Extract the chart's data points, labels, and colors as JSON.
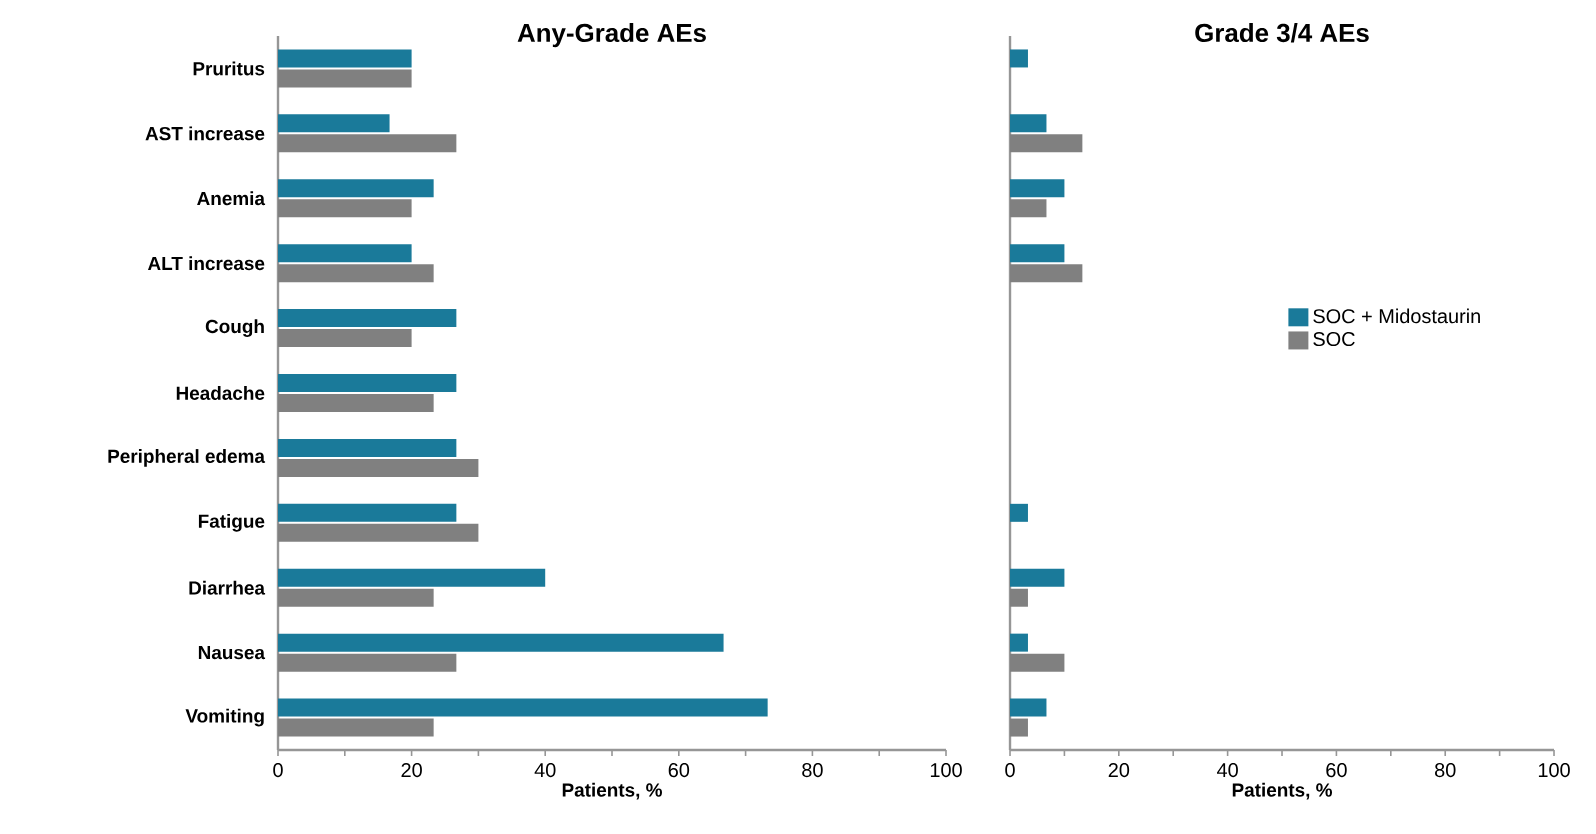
{
  "chart_data": [
    {
      "type": "bar",
      "orientation": "horizontal",
      "title": "Any-Grade AEs",
      "xlabel": "Patients, %",
      "categories": [
        "Pruritus",
        "AST increase",
        "Anemia",
        "ALT increase",
        "Cough",
        "Headache",
        "Peripheral edema",
        "Fatigue",
        "Diarrhea",
        "Nausea",
        "Vomiting"
      ],
      "series": [
        {
          "color": "#1a7a9a",
          "values": [
            20,
            16.7,
            23.3,
            20,
            26.7,
            26.7,
            26.7,
            26.7,
            40,
            66.7,
            73.3
          ]
        },
        {
          "color": "#808080",
          "values": [
            20,
            26.7,
            20,
            23.3,
            20,
            23.3,
            30,
            30,
            23.3,
            26.7,
            23.3
          ]
        }
      ],
      "xlim": [
        0,
        100
      ],
      "xticks": [
        0,
        {
          "value": 10,
          "label": null
        },
        20,
        {
          "value": 30,
          "label": null
        },
        40,
        {
          "value": 50,
          "label": null
        },
        60,
        {
          "value": 70,
          "label": null
        },
        80,
        {
          "value": 90,
          "label": null
        },
        100
      ],
      "grid": false,
      "legend": false
    },
    {
      "type": "bar",
      "orientation": "horizontal",
      "title": "Grade 3/4 AEs",
      "xlabel": "Patients, %",
      "categories": [
        null,
        null,
        null,
        null,
        null,
        null,
        null,
        null,
        null,
        null,
        null
      ],
      "series": [
        {
          "name": "SOC + Midostaurin",
          "color": "#1a7a9a",
          "values": [
            3.3,
            6.7,
            10,
            10,
            0,
            0,
            0,
            3.3,
            10,
            3.3,
            6.7
          ]
        },
        {
          "name": "SOC",
          "color": "#808080",
          "values": [
            0,
            13.3,
            6.7,
            13.3,
            0,
            0,
            0,
            0,
            3.3,
            10,
            3.3
          ]
        }
      ],
      "xlim": [
        0,
        100
      ],
      "xticks": [
        0,
        {
          "value": 10,
          "label": null
        },
        20,
        {
          "value": 30,
          "label": null
        },
        40,
        {
          "value": 50,
          "label": null
        },
        60,
        {
          "value": 70,
          "label": null
        },
        80,
        {
          "value": 90,
          "label": null
        },
        100
      ],
      "grid": false,
      "legend": "right"
    }
  ]
}
